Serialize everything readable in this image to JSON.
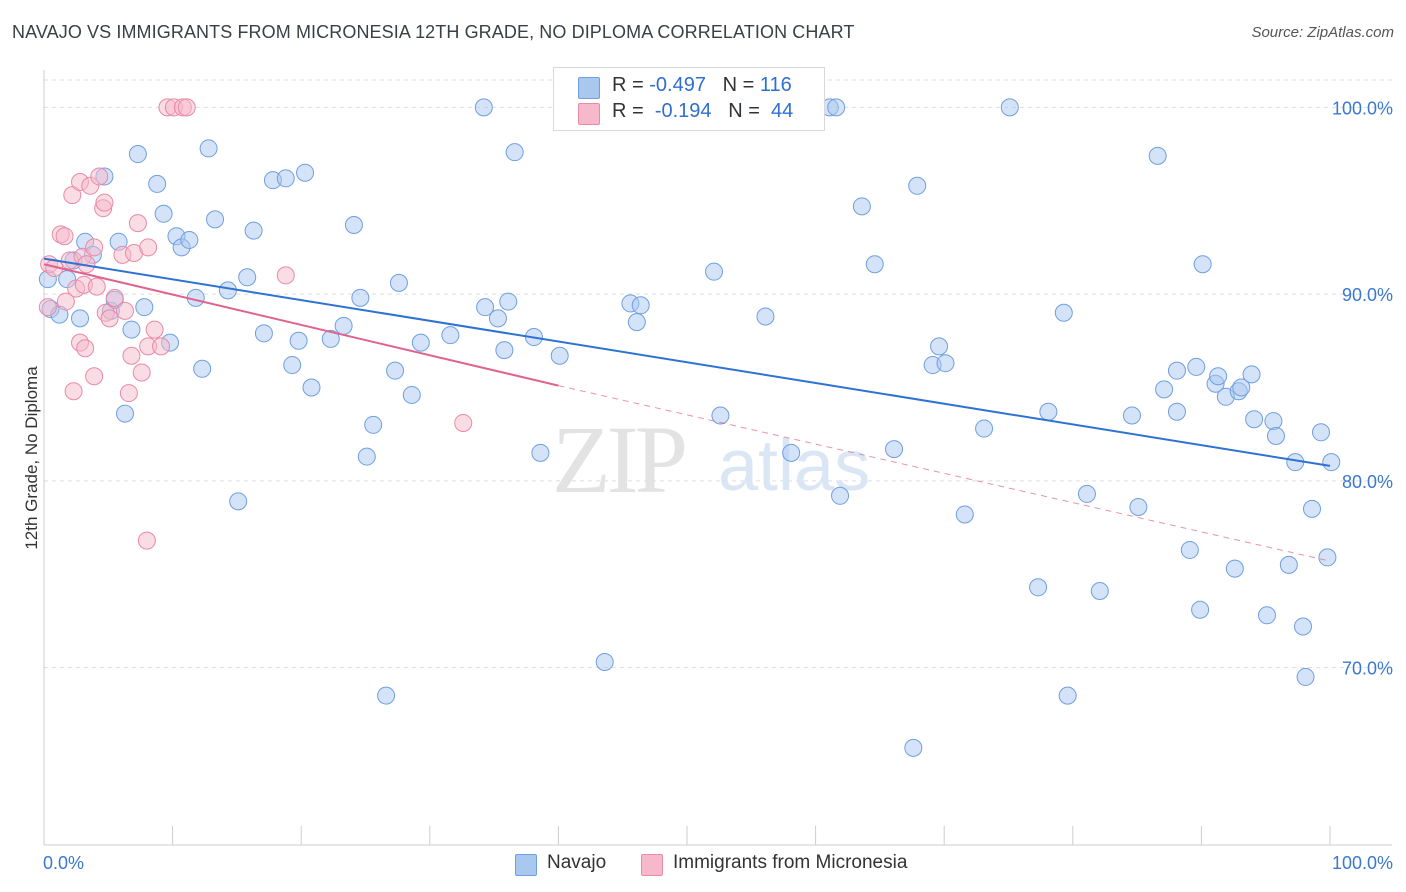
{
  "title": "NAVAJO VS IMMIGRANTS FROM MICRONESIA 12TH GRADE, NO DIPLOMA CORRELATION CHART",
  "source": "Source: ZipAtlas.com",
  "watermark": {
    "zip": "ZIP",
    "atlas": "atlas"
  },
  "legend": {
    "navajo": {
      "r_label": "R =",
      "r_value": "-0.497",
      "n_label": "N =",
      "n_value": "116"
    },
    "micronesia": {
      "r_label": "R =",
      "r_value": "-0.194",
      "n_label": "N =",
      "n_value": "44"
    }
  },
  "bottom_legend": {
    "navajo": "Navajo",
    "micronesia": "Immigrants from Micronesia"
  },
  "colors": {
    "navajo_fill": "#a9c8f0",
    "navajo_stroke": "#6f9fe0",
    "navajo_line": "#2e72d2",
    "micronesia_fill": "#f6b9cb",
    "micronesia_stroke": "#e98aa8",
    "micronesia_line": "#e0638f",
    "grid": "#dddddd",
    "axis_label": "#3b78d0"
  },
  "chart_data": {
    "type": "scatter",
    "title": "NAVAJO VS IMMIGRANTS FROM MICRONESIA 12TH GRADE, NO DIPLOMA CORRELATION CHART",
    "xlabel": "",
    "ylabel": "12th Grade, No Diploma",
    "xlim": [
      0,
      100
    ],
    "ylim": [
      60.5,
      102
    ],
    "x_tick_labels": [
      "0.0%",
      "100.0%"
    ],
    "y_ticks": [
      70,
      80,
      90,
      100
    ],
    "y_tick_labels": [
      "70.0%",
      "80.0%",
      "90.0%",
      "100.0%"
    ],
    "grid": true,
    "legend_position": "top-center",
    "series": [
      {
        "name": "Navajo",
        "trend": {
          "x0": 0,
          "y0": 91.9,
          "x1": 100,
          "y1": 80.8
        },
        "points": [
          [
            0.3,
            90.8
          ],
          [
            0.5,
            89.2
          ],
          [
            1.2,
            88.9
          ],
          [
            1.8,
            90.8
          ],
          [
            2.3,
            91.8
          ],
          [
            2.8,
            88.7
          ],
          [
            3.2,
            92.8
          ],
          [
            3.8,
            92.1
          ],
          [
            4.7,
            96.3
          ],
          [
            5.2,
            89.1
          ],
          [
            5.5,
            89.7
          ],
          [
            5.8,
            92.8
          ],
          [
            6.3,
            83.6
          ],
          [
            6.8,
            88.1
          ],
          [
            7.3,
            97.5
          ],
          [
            7.8,
            89.3
          ],
          [
            8.8,
            95.9
          ],
          [
            9.3,
            94.3
          ],
          [
            9.8,
            87.4
          ],
          [
            10.3,
            93.1
          ],
          [
            10.7,
            92.5
          ],
          [
            11.3,
            92.9
          ],
          [
            11.8,
            89.8
          ],
          [
            12.3,
            86.0
          ],
          [
            12.8,
            97.8
          ],
          [
            13.3,
            94.0
          ],
          [
            14.3,
            90.2
          ],
          [
            15.1,
            78.9
          ],
          [
            15.8,
            90.9
          ],
          [
            16.3,
            93.4
          ],
          [
            17.1,
            87.9
          ],
          [
            17.8,
            96.1
          ],
          [
            18.8,
            96.2
          ],
          [
            19.3,
            86.2
          ],
          [
            19.8,
            87.5
          ],
          [
            20.3,
            96.5
          ],
          [
            20.8,
            85.0
          ],
          [
            22.3,
            87.6
          ],
          [
            23.3,
            88.3
          ],
          [
            24.1,
            93.7
          ],
          [
            24.6,
            89.8
          ],
          [
            25.1,
            81.3
          ],
          [
            25.6,
            83.0
          ],
          [
            26.6,
            68.5
          ],
          [
            27.3,
            85.9
          ],
          [
            27.6,
            90.6
          ],
          [
            28.6,
            84.6
          ],
          [
            29.3,
            87.4
          ],
          [
            31.6,
            87.8
          ],
          [
            34.2,
            100.0
          ],
          [
            34.3,
            89.3
          ],
          [
            35.3,
            88.7
          ],
          [
            35.8,
            87.0
          ],
          [
            36.1,
            89.6
          ],
          [
            36.6,
            97.6
          ],
          [
            38.1,
            87.7
          ],
          [
            38.6,
            81.5
          ],
          [
            40.1,
            86.7
          ],
          [
            43.6,
            70.3
          ],
          [
            45.6,
            89.5
          ],
          [
            46.1,
            88.5
          ],
          [
            46.4,
            89.4
          ],
          [
            52.1,
            91.2
          ],
          [
            52.6,
            83.5
          ],
          [
            54.1,
            100.0
          ],
          [
            56.1,
            88.8
          ],
          [
            58.1,
            81.5
          ],
          [
            61.1,
            100.0
          ],
          [
            61.6,
            100.0
          ],
          [
            61.9,
            79.2
          ],
          [
            63.6,
            94.7
          ],
          [
            64.6,
            91.6
          ],
          [
            66.1,
            81.7
          ],
          [
            67.6,
            65.7
          ],
          [
            67.9,
            95.8
          ],
          [
            69.1,
            86.2
          ],
          [
            69.6,
            87.2
          ],
          [
            70.1,
            86.3
          ],
          [
            71.6,
            78.2
          ],
          [
            73.1,
            82.8
          ],
          [
            75.1,
            100.0
          ],
          [
            77.3,
            74.3
          ],
          [
            78.1,
            83.7
          ],
          [
            79.3,
            89.0
          ],
          [
            79.6,
            68.5
          ],
          [
            81.1,
            79.3
          ],
          [
            82.1,
            74.1
          ],
          [
            84.6,
            83.5
          ],
          [
            85.1,
            78.6
          ],
          [
            86.6,
            97.4
          ],
          [
            87.1,
            84.9
          ],
          [
            88.1,
            85.9
          ],
          [
            88.1,
            83.7
          ],
          [
            89.1,
            76.3
          ],
          [
            89.6,
            86.1
          ],
          [
            89.9,
            73.1
          ],
          [
            90.1,
            91.6
          ],
          [
            91.1,
            85.2
          ],
          [
            91.3,
            85.6
          ],
          [
            91.9,
            84.5
          ],
          [
            92.6,
            75.3
          ],
          [
            92.9,
            84.8
          ],
          [
            93.1,
            85.0
          ],
          [
            93.9,
            85.7
          ],
          [
            94.1,
            83.3
          ],
          [
            95.1,
            72.8
          ],
          [
            95.6,
            83.2
          ],
          [
            95.8,
            82.4
          ],
          [
            96.8,
            75.5
          ],
          [
            97.3,
            81.0
          ],
          [
            97.9,
            72.2
          ],
          [
            98.1,
            69.5
          ],
          [
            98.6,
            78.5
          ],
          [
            99.3,
            82.6
          ],
          [
            99.8,
            75.9
          ],
          [
            100.1,
            81.0
          ]
        ]
      },
      {
        "name": "Immigrants from Micronesia",
        "trend": {
          "x0": 0,
          "y0": 91.6,
          "x1": 40,
          "y1": 85.1,
          "dash_to": {
            "x": 100,
            "y": 75.7
          }
        },
        "points": [
          [
            0.3,
            89.3
          ],
          [
            0.4,
            91.6
          ],
          [
            0.8,
            91.4
          ],
          [
            1.3,
            93.2
          ],
          [
            1.6,
            93.1
          ],
          [
            1.7,
            89.6
          ],
          [
            2.0,
            91.8
          ],
          [
            2.2,
            95.3
          ],
          [
            2.3,
            84.8
          ],
          [
            2.5,
            90.3
          ],
          [
            2.8,
            87.4
          ],
          [
            2.8,
            96.0
          ],
          [
            3.0,
            92.0
          ],
          [
            3.1,
            90.5
          ],
          [
            3.2,
            87.1
          ],
          [
            3.3,
            91.6
          ],
          [
            3.6,
            95.8
          ],
          [
            3.9,
            85.6
          ],
          [
            3.9,
            92.5
          ],
          [
            4.1,
            90.4
          ],
          [
            4.3,
            96.3
          ],
          [
            4.6,
            94.6
          ],
          [
            4.7,
            94.9
          ],
          [
            4.8,
            89.0
          ],
          [
            5.1,
            88.7
          ],
          [
            5.5,
            89.8
          ],
          [
            6.1,
            92.1
          ],
          [
            6.3,
            89.1
          ],
          [
            6.6,
            84.7
          ],
          [
            6.8,
            86.7
          ],
          [
            7.0,
            92.2
          ],
          [
            7.3,
            93.8
          ],
          [
            7.6,
            85.8
          ],
          [
            8.0,
            76.8
          ],
          [
            8.1,
            87.2
          ],
          [
            8.1,
            92.5
          ],
          [
            8.6,
            88.1
          ],
          [
            9.1,
            87.2
          ],
          [
            9.6,
            100.0
          ],
          [
            10.1,
            100.0
          ],
          [
            10.8,
            100.0
          ],
          [
            11.1,
            100.0
          ],
          [
            18.8,
            91.0
          ],
          [
            32.6,
            83.1
          ]
        ]
      }
    ]
  }
}
